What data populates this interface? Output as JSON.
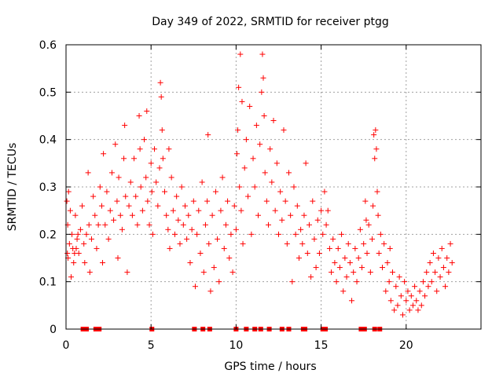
{
  "chart_data": {
    "type": "scatter",
    "title": "Day 349 of 2022, SRMTID for receiver ptgg",
    "xlabel": "GPS time / hours",
    "ylabel": "SRMTID / TECUs",
    "xlim": [
      0,
      24.4
    ],
    "ylim": [
      0,
      0.6
    ],
    "xticks": [
      0,
      5,
      10,
      15,
      20
    ],
    "xtick_labels": [
      "0",
      "5",
      "10",
      "15",
      "20"
    ],
    "yticks": [
      0,
      0.1,
      0.2,
      0.3,
      0.4,
      0.5,
      0.6
    ],
    "ytick_labels": [
      "0",
      "0.1",
      "0.2",
      "0.3",
      "0.4",
      "0.5",
      "0.6"
    ],
    "grid": true,
    "marker": "+",
    "color": "#ff0000",
    "series": [
      {
        "name": "SRMTID",
        "points": [
          [
            0.05,
            0.27
          ],
          [
            0.08,
            0.16
          ],
          [
            0.1,
            0.22
          ],
          [
            0.12,
            0.15
          ],
          [
            0.15,
            0.29
          ],
          [
            0.2,
            0.18
          ],
          [
            0.25,
            0.25
          ],
          [
            0.3,
            0.11
          ],
          [
            0.35,
            0.2
          ],
          [
            0.4,
            0.17
          ],
          [
            0.45,
            0.14
          ],
          [
            0.5,
            0.16
          ],
          [
            0.55,
            0.24
          ],
          [
            0.6,
            0.17
          ],
          [
            0.65,
            0.19
          ],
          [
            0.7,
            0.2
          ],
          [
            0.75,
            0.16
          ],
          [
            0.85,
            0.21
          ],
          [
            0.95,
            0.26
          ],
          [
            1.05,
            0.18
          ],
          [
            1.1,
            0.14
          ],
          [
            1.2,
            0.2
          ],
          [
            1.3,
            0.33
          ],
          [
            1.35,
            0.22
          ],
          [
            1.4,
            0.12
          ],
          [
            1.5,
            0.19
          ],
          [
            1.6,
            0.28
          ],
          [
            1.7,
            0.24
          ],
          [
            1.8,
            0.17
          ],
          [
            1.9,
            0.22
          ],
          [
            2.0,
            0.3
          ],
          [
            2.1,
            0.26
          ],
          [
            2.15,
            0.14
          ],
          [
            2.2,
            0.37
          ],
          [
            2.3,
            0.22
          ],
          [
            2.4,
            0.29
          ],
          [
            2.5,
            0.19
          ],
          [
            2.6,
            0.25
          ],
          [
            2.7,
            0.33
          ],
          [
            2.8,
            0.23
          ],
          [
            2.9,
            0.39
          ],
          [
            3.0,
            0.27
          ],
          [
            3.05,
            0.15
          ],
          [
            3.1,
            0.32
          ],
          [
            3.2,
            0.24
          ],
          [
            3.3,
            0.21
          ],
          [
            3.4,
            0.36
          ],
          [
            3.45,
            0.43
          ],
          [
            3.5,
            0.28
          ],
          [
            3.6,
            0.12
          ],
          [
            3.7,
            0.26
          ],
          [
            3.8,
            0.31
          ],
          [
            3.9,
            0.24
          ],
          [
            4.0,
            0.36
          ],
          [
            4.1,
            0.28
          ],
          [
            4.2,
            0.22
          ],
          [
            4.3,
            0.45
          ],
          [
            4.35,
            0.38
          ],
          [
            4.4,
            0.3
          ],
          [
            4.5,
            0.25
          ],
          [
            4.6,
            0.4
          ],
          [
            4.7,
            0.32
          ],
          [
            4.75,
            0.46
          ],
          [
            4.8,
            0.27
          ],
          [
            4.9,
            0.22
          ],
          [
            5.0,
            0.35
          ],
          [
            5.05,
            0.29
          ],
          [
            5.1,
            0.2
          ],
          [
            5.2,
            0.38
          ],
          [
            5.3,
            0.31
          ],
          [
            5.4,
            0.26
          ],
          [
            5.5,
            0.34
          ],
          [
            5.55,
            0.52
          ],
          [
            5.6,
            0.49
          ],
          [
            5.65,
            0.42
          ],
          [
            5.7,
            0.36
          ],
          [
            5.8,
            0.29
          ],
          [
            5.9,
            0.24
          ],
          [
            6.0,
            0.21
          ],
          [
            6.05,
            0.38
          ],
          [
            6.1,
            0.17
          ],
          [
            6.2,
            0.32
          ],
          [
            6.3,
            0.25
          ],
          [
            6.4,
            0.2
          ],
          [
            6.5,
            0.28
          ],
          [
            6.6,
            0.23
          ],
          [
            6.7,
            0.18
          ],
          [
            6.8,
            0.3
          ],
          [
            6.9,
            0.22
          ],
          [
            7.0,
            0.26
          ],
          [
            7.1,
            0.19
          ],
          [
            7.2,
            0.24
          ],
          [
            7.3,
            0.14
          ],
          [
            7.4,
            0.21
          ],
          [
            7.5,
            0.27
          ],
          [
            7.6,
            0.09
          ],
          [
            7.7,
            0.2
          ],
          [
            7.8,
            0.25
          ],
          [
            7.9,
            0.16
          ],
          [
            8.0,
            0.31
          ],
          [
            8.1,
            0.12
          ],
          [
            8.2,
            0.22
          ],
          [
            8.3,
            0.27
          ],
          [
            8.35,
            0.41
          ],
          [
            8.4,
            0.18
          ],
          [
            8.5,
            0.08
          ],
          [
            8.6,
            0.24
          ],
          [
            8.7,
            0.13
          ],
          [
            8.8,
            0.29
          ],
          [
            8.9,
            0.19
          ],
          [
            9.0,
            0.1
          ],
          [
            9.1,
            0.25
          ],
          [
            9.2,
            0.32
          ],
          [
            9.3,
            0.17
          ],
          [
            9.4,
            0.22
          ],
          [
            9.5,
            0.27
          ],
          [
            9.6,
            0.15
          ],
          [
            9.7,
            0.2
          ],
          [
            9.8,
            0.12
          ],
          [
            9.9,
            0.26
          ],
          [
            10.0,
            0.21
          ],
          [
            10.05,
            0.37
          ],
          [
            10.1,
            0.42
          ],
          [
            10.15,
            0.51
          ],
          [
            10.2,
            0.3
          ],
          [
            10.25,
            0.58
          ],
          [
            10.3,
            0.25
          ],
          [
            10.35,
            0.48
          ],
          [
            10.4,
            0.18
          ],
          [
            10.5,
            0.34
          ],
          [
            10.6,
            0.4
          ],
          [
            10.7,
            0.28
          ],
          [
            10.8,
            0.47
          ],
          [
            10.9,
            0.2
          ],
          [
            11.0,
            0.36
          ],
          [
            11.1,
            0.3
          ],
          [
            11.2,
            0.43
          ],
          [
            11.3,
            0.24
          ],
          [
            11.4,
            0.39
          ],
          [
            11.5,
            0.5
          ],
          [
            11.55,
            0.58
          ],
          [
            11.6,
            0.53
          ],
          [
            11.65,
            0.45
          ],
          [
            11.7,
            0.33
          ],
          [
            11.8,
            0.27
          ],
          [
            11.9,
            0.22
          ],
          [
            12.0,
            0.38
          ],
          [
            12.1,
            0.31
          ],
          [
            12.2,
            0.44
          ],
          [
            12.3,
            0.25
          ],
          [
            12.4,
            0.35
          ],
          [
            12.5,
            0.2
          ],
          [
            12.6,
            0.29
          ],
          [
            12.7,
            0.23
          ],
          [
            12.8,
            0.42
          ],
          [
            12.9,
            0.27
          ],
          [
            13.0,
            0.18
          ],
          [
            13.1,
            0.33
          ],
          [
            13.2,
            0.24
          ],
          [
            13.3,
            0.1
          ],
          [
            13.4,
            0.3
          ],
          [
            13.5,
            0.2
          ],
          [
            13.6,
            0.26
          ],
          [
            13.7,
            0.15
          ],
          [
            13.8,
            0.21
          ],
          [
            13.9,
            0.18
          ],
          [
            14.0,
            0.24
          ],
          [
            14.1,
            0.35
          ],
          [
            14.2,
            0.16
          ],
          [
            14.3,
            0.22
          ],
          [
            14.4,
            0.11
          ],
          [
            14.5,
            0.27
          ],
          [
            14.6,
            0.19
          ],
          [
            14.7,
            0.13
          ],
          [
            14.8,
            0.23
          ],
          [
            14.9,
            0.16
          ],
          [
            15.0,
            0.25
          ],
          [
            15.1,
            0.2
          ],
          [
            15.2,
            0.29
          ],
          [
            15.3,
            0.22
          ],
          [
            15.4,
            0.25
          ],
          [
            15.5,
            0.17
          ],
          [
            15.6,
            0.12
          ],
          [
            15.7,
            0.19
          ],
          [
            15.8,
            0.14
          ],
          [
            15.9,
            0.1
          ],
          [
            16.0,
            0.17
          ],
          [
            16.1,
            0.13
          ],
          [
            16.2,
            0.2
          ],
          [
            16.3,
            0.08
          ],
          [
            16.4,
            0.15
          ],
          [
            16.5,
            0.11
          ],
          [
            16.6,
            0.18
          ],
          [
            16.7,
            0.14
          ],
          [
            16.8,
            0.06
          ],
          [
            16.9,
            0.12
          ],
          [
            17.0,
            0.17
          ],
          [
            17.1,
            0.1
          ],
          [
            17.2,
            0.15
          ],
          [
            17.3,
            0.21
          ],
          [
            17.4,
            0.13
          ],
          [
            17.5,
            0.18
          ],
          [
            17.6,
            0.27
          ],
          [
            17.65,
            0.23
          ],
          [
            17.7,
            0.16
          ],
          [
            17.8,
            0.22
          ],
          [
            17.9,
            0.12
          ],
          [
            18.0,
            0.19
          ],
          [
            18.05,
            0.26
          ],
          [
            18.1,
            0.41
          ],
          [
            18.15,
            0.36
          ],
          [
            18.2,
            0.42
          ],
          [
            18.25,
            0.38
          ],
          [
            18.3,
            0.29
          ],
          [
            18.35,
            0.24
          ],
          [
            18.4,
            0.16
          ],
          [
            18.5,
            0.2
          ],
          [
            18.6,
            0.13
          ],
          [
            18.7,
            0.18
          ],
          [
            18.8,
            0.08
          ],
          [
            18.9,
            0.14
          ],
          [
            19.0,
            0.1
          ],
          [
            19.05,
            0.17
          ],
          [
            19.1,
            0.06
          ],
          [
            19.2,
            0.12
          ],
          [
            19.3,
            0.04
          ],
          [
            19.4,
            0.09
          ],
          [
            19.5,
            0.05
          ],
          [
            19.6,
            0.11
          ],
          [
            19.7,
            0.07
          ],
          [
            19.8,
            0.03
          ],
          [
            19.9,
            0.1
          ],
          [
            20.0,
            0.06
          ],
          [
            20.1,
            0.08
          ],
          [
            20.2,
            0.04
          ],
          [
            20.3,
            0.07
          ],
          [
            20.4,
            0.05
          ],
          [
            20.5,
            0.09
          ],
          [
            20.6,
            0.06
          ],
          [
            20.7,
            0.04
          ],
          [
            20.8,
            0.08
          ],
          [
            20.9,
            0.05
          ],
          [
            21.0,
            0.1
          ],
          [
            21.1,
            0.07
          ],
          [
            21.2,
            0.12
          ],
          [
            21.3,
            0.09
          ],
          [
            21.4,
            0.14
          ],
          [
            21.5,
            0.1
          ],
          [
            21.6,
            0.16
          ],
          [
            21.7,
            0.12
          ],
          [
            21.8,
            0.08
          ],
          [
            21.9,
            0.15
          ],
          [
            22.0,
            0.11
          ],
          [
            22.1,
            0.17
          ],
          [
            22.2,
            0.13
          ],
          [
            22.3,
            0.09
          ],
          [
            22.4,
            0.15
          ],
          [
            22.5,
            0.12
          ],
          [
            22.6,
            0.18
          ],
          [
            22.7,
            0.14
          ],
          [
            1.0,
            0.0
          ],
          [
            1.1,
            0.0
          ],
          [
            1.2,
            0.0
          ],
          [
            1.75,
            0.0
          ],
          [
            1.85,
            0.0
          ],
          [
            1.95,
            0.0
          ],
          [
            5.05,
            0.0
          ],
          [
            7.55,
            0.0
          ],
          [
            8.05,
            0.0
          ],
          [
            8.45,
            0.0
          ],
          [
            10.0,
            0.0
          ],
          [
            10.6,
            0.0
          ],
          [
            11.1,
            0.0
          ],
          [
            11.45,
            0.0
          ],
          [
            11.95,
            0.0
          ],
          [
            12.7,
            0.0
          ],
          [
            13.1,
            0.0
          ],
          [
            13.95,
            0.0
          ],
          [
            14.05,
            0.0
          ],
          [
            15.1,
            0.0
          ],
          [
            15.25,
            0.0
          ],
          [
            17.35,
            0.0
          ],
          [
            17.55,
            0.0
          ],
          [
            18.15,
            0.0
          ],
          [
            18.45,
            0.0
          ]
        ]
      }
    ]
  }
}
